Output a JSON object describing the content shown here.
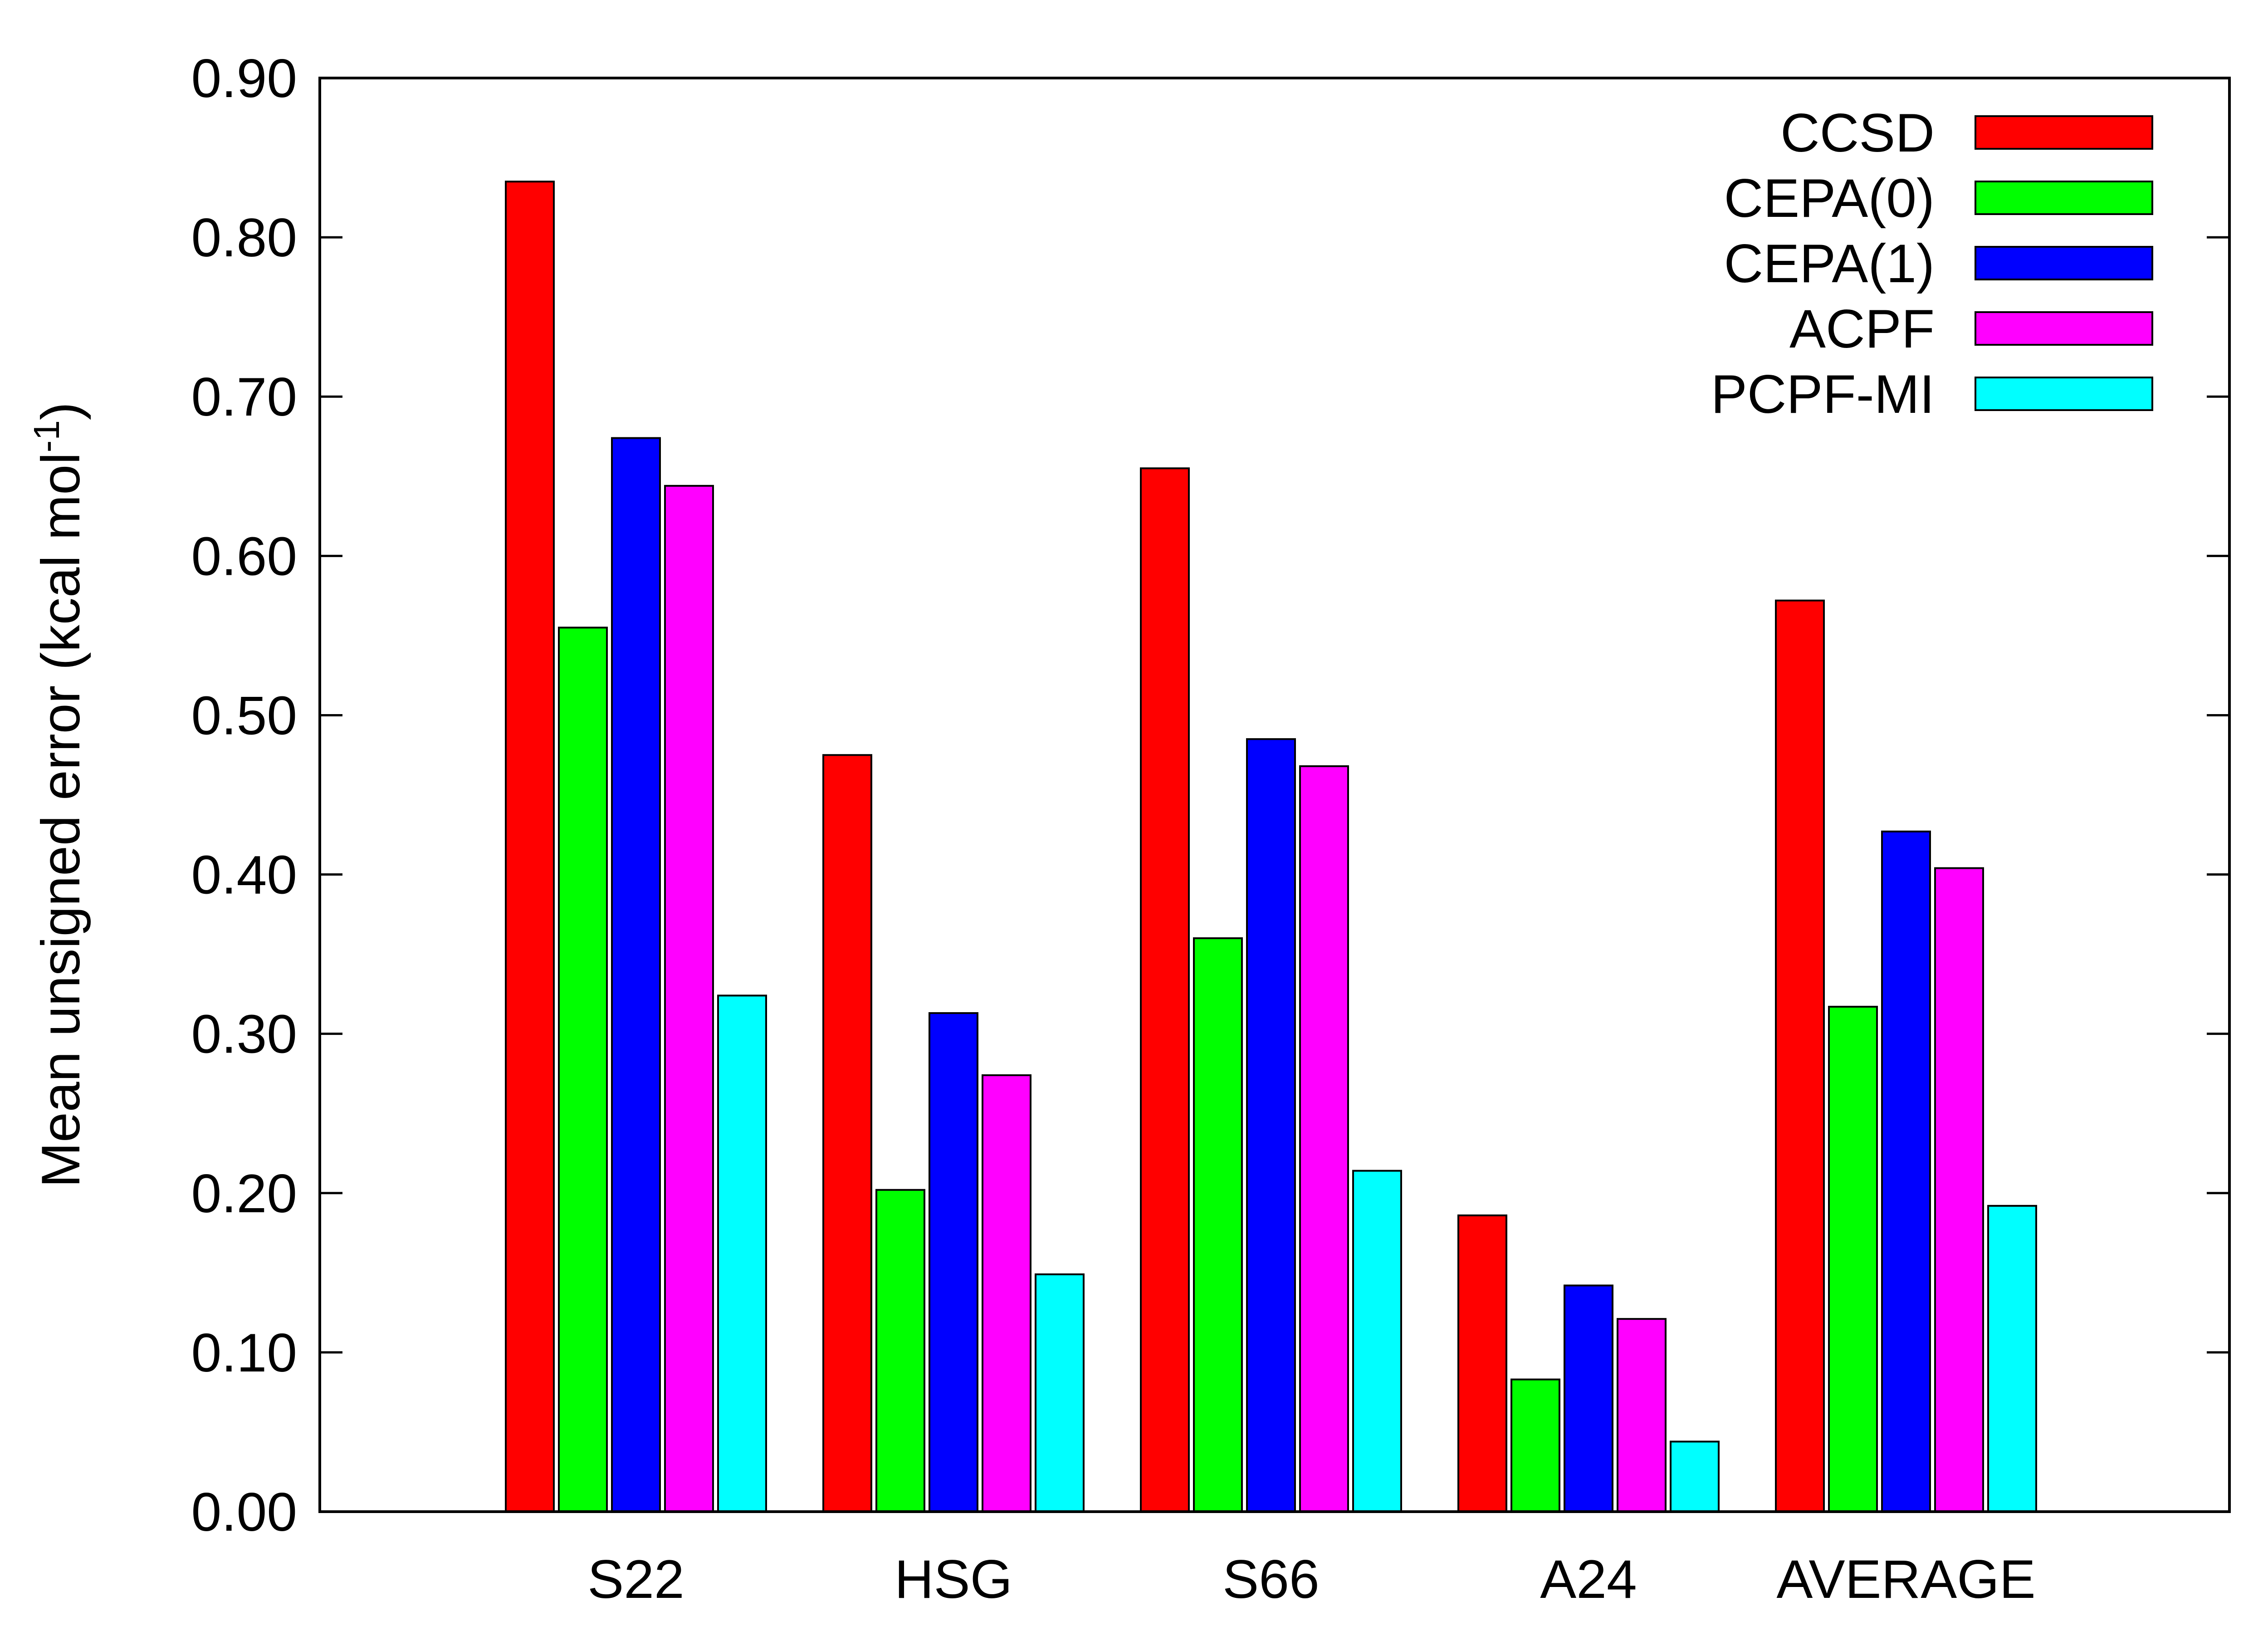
{
  "chart_data": {
    "type": "bar",
    "categories": [
      "S22",
      "HSG",
      "S66",
      "A24",
      "AVERAGE"
    ],
    "series": [
      {
        "name": "CCSD",
        "color": "#ff0000",
        "values": [
          0.835,
          0.475,
          0.655,
          0.186,
          0.572
        ]
      },
      {
        "name": "CEPA(0)",
        "color": "#00ff00",
        "values": [
          0.555,
          0.202,
          0.36,
          0.083,
          0.317
        ]
      },
      {
        "name": "CEPA(1)",
        "color": "#0000ff",
        "values": [
          0.674,
          0.313,
          0.485,
          0.142,
          0.427
        ]
      },
      {
        "name": "ACPF",
        "color": "#ff00ff",
        "values": [
          0.644,
          0.274,
          0.468,
          0.121,
          0.404
        ]
      },
      {
        "name": "PCPF-MI",
        "color": "#00ffff",
        "values": [
          0.324,
          0.149,
          0.214,
          0.044,
          0.192
        ]
      }
    ],
    "ylabel": "Mean unsigned error (kcal mol",
    "ylabel_sup": "-1",
    "ylabel_close": ")",
    "ylim": [
      0,
      0.9
    ],
    "yticks": [
      "0.00",
      "0.10",
      "0.20",
      "0.30",
      "0.40",
      "0.50",
      "0.60",
      "0.70",
      "0.80",
      "0.90"
    ],
    "grid": false,
    "legend_position": "top-right"
  }
}
